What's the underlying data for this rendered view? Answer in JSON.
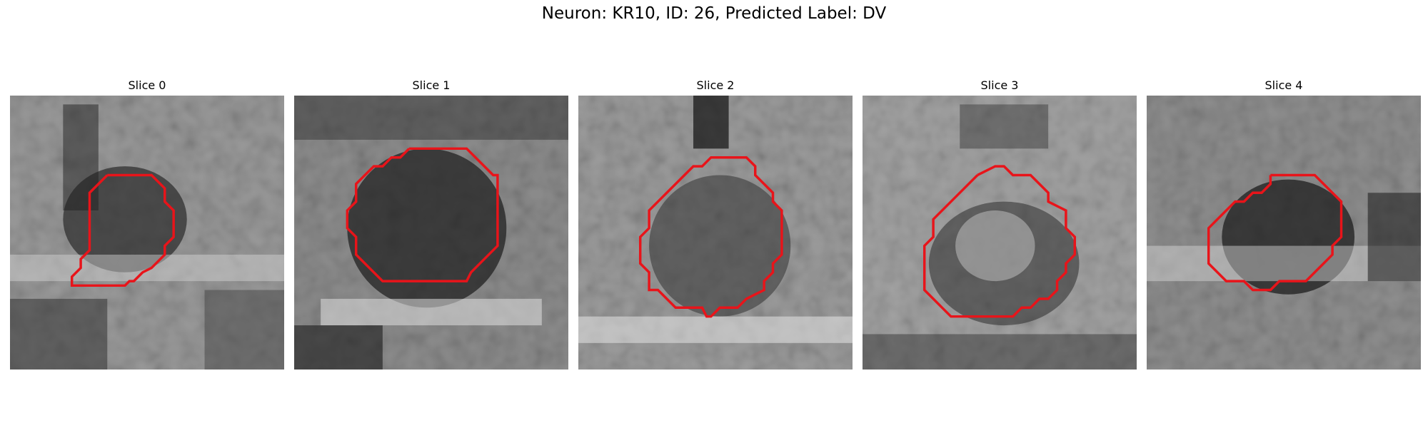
{
  "figure": {
    "title": "Neuron: KR10, ID: 26, Predicted Label: DV",
    "outline_color": "#e8141a"
  },
  "panels": [
    {
      "title": "Slice 0"
    },
    {
      "title": "Slice 1"
    },
    {
      "title": "Slice 2"
    },
    {
      "title": "Slice 3"
    },
    {
      "title": "Slice 4"
    }
  ]
}
